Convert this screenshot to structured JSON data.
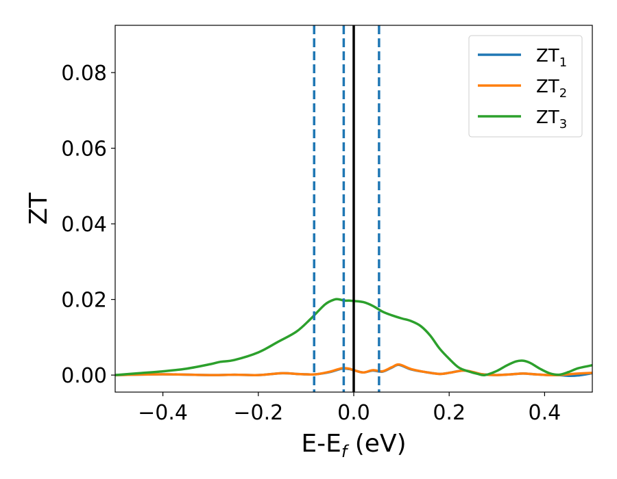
{
  "chart_data": {
    "type": "line",
    "xlabel": "E-E_f (eV)",
    "xlabel_parts": {
      "main": "E-E",
      "sub": "f",
      "unit": " (eV)"
    },
    "ylabel": "ZT",
    "xlim": [
      -0.5,
      0.5
    ],
    "ylim": [
      -0.0045,
      0.0925
    ],
    "xticks": [
      -0.4,
      -0.2,
      0.0,
      0.2,
      0.4
    ],
    "xtick_labels": [
      "−0.4",
      "−0.2",
      "0.0",
      "0.2",
      "0.4"
    ],
    "yticks": [
      0.0,
      0.02,
      0.04,
      0.06,
      0.08
    ],
    "ytick_labels": [
      "0.00",
      "0.02",
      "0.04",
      "0.06",
      "0.08"
    ],
    "grid": false,
    "legend_position": "top-right",
    "solid_vline": {
      "x": 0.0,
      "color": "#000000"
    },
    "dashed_vlines": {
      "x": [
        -0.083,
        -0.021,
        0.053
      ],
      "color": "#1f77b4"
    },
    "series": [
      {
        "name": "ZT_1",
        "label_main": "ZT",
        "label_sub": "1",
        "color": "#1f77b4",
        "x": [
          -0.5,
          -0.4,
          -0.3,
          -0.25,
          -0.2,
          -0.15,
          -0.12,
          -0.1,
          -0.08,
          -0.05,
          -0.025,
          -0.01,
          0.0,
          0.02,
          0.04,
          0.06,
          0.08,
          0.095,
          0.12,
          0.15,
          0.18,
          0.2,
          0.23,
          0.25,
          0.27,
          0.3,
          0.33,
          0.355,
          0.38,
          0.41,
          0.43,
          0.45,
          0.47,
          0.5
        ],
        "y": [
          0.0,
          0.0002,
          0.0,
          0.0001,
          0.0,
          0.0005,
          0.0003,
          0.0002,
          0.0002,
          0.0008,
          0.0017,
          0.0016,
          0.0013,
          0.0007,
          0.0012,
          0.0009,
          0.002,
          0.0027,
          0.0015,
          0.0008,
          0.0003,
          0.0006,
          0.0012,
          0.0007,
          0.0002,
          0.0,
          0.0002,
          0.0004,
          0.0002,
          0.0,
          0.0,
          -0.0002,
          -0.0001,
          0.0005
        ]
      },
      {
        "name": "ZT_2",
        "label_main": "ZT",
        "label_sub": "2",
        "color": "#ff7f0e",
        "x": [
          -0.5,
          -0.4,
          -0.3,
          -0.25,
          -0.2,
          -0.15,
          -0.12,
          -0.1,
          -0.08,
          -0.05,
          -0.025,
          -0.01,
          0.0,
          0.02,
          0.04,
          0.06,
          0.08,
          0.095,
          0.12,
          0.15,
          0.18,
          0.2,
          0.23,
          0.25,
          0.27,
          0.3,
          0.33,
          0.355,
          0.38,
          0.41,
          0.43,
          0.45,
          0.47,
          0.5
        ],
        "y": [
          0.0,
          0.0002,
          0.0,
          0.0001,
          0.0,
          0.0005,
          0.0003,
          0.0002,
          0.0002,
          0.0009,
          0.0018,
          0.0017,
          0.0013,
          0.0007,
          0.0013,
          0.001,
          0.0021,
          0.0028,
          0.0016,
          0.0008,
          0.0003,
          0.0006,
          0.0012,
          0.0008,
          0.0002,
          0.0,
          0.0002,
          0.0004,
          0.0002,
          0.0,
          0.0,
          0.0002,
          0.0004,
          0.0006
        ]
      },
      {
        "name": "ZT_3",
        "label_main": "ZT",
        "label_sub": "3",
        "color": "#2ca02c",
        "x": [
          -0.5,
          -0.45,
          -0.4,
          -0.35,
          -0.3,
          -0.28,
          -0.25,
          -0.2,
          -0.16,
          -0.12,
          -0.09,
          -0.06,
          -0.04,
          -0.03,
          -0.02,
          -0.01,
          0.0,
          0.02,
          0.04,
          0.06,
          0.08,
          0.1,
          0.12,
          0.14,
          0.16,
          0.18,
          0.2,
          0.22,
          0.24,
          0.26,
          0.275,
          0.3,
          0.32,
          0.34,
          0.355,
          0.37,
          0.39,
          0.41,
          0.43,
          0.45,
          0.47,
          0.5
        ],
        "y": [
          0.0,
          0.0005,
          0.001,
          0.0017,
          0.0029,
          0.0035,
          0.004,
          0.006,
          0.0087,
          0.0115,
          0.0149,
          0.0187,
          0.02,
          0.02,
          0.0197,
          0.0197,
          0.0196,
          0.0193,
          0.0183,
          0.0168,
          0.0158,
          0.015,
          0.0143,
          0.013,
          0.0105,
          0.007,
          0.0043,
          0.002,
          0.001,
          0.0003,
          0.0,
          0.0011,
          0.0025,
          0.0036,
          0.0038,
          0.0032,
          0.0017,
          0.0005,
          0.0001,
          0.0008,
          0.0018,
          0.0026
        ]
      }
    ]
  }
}
